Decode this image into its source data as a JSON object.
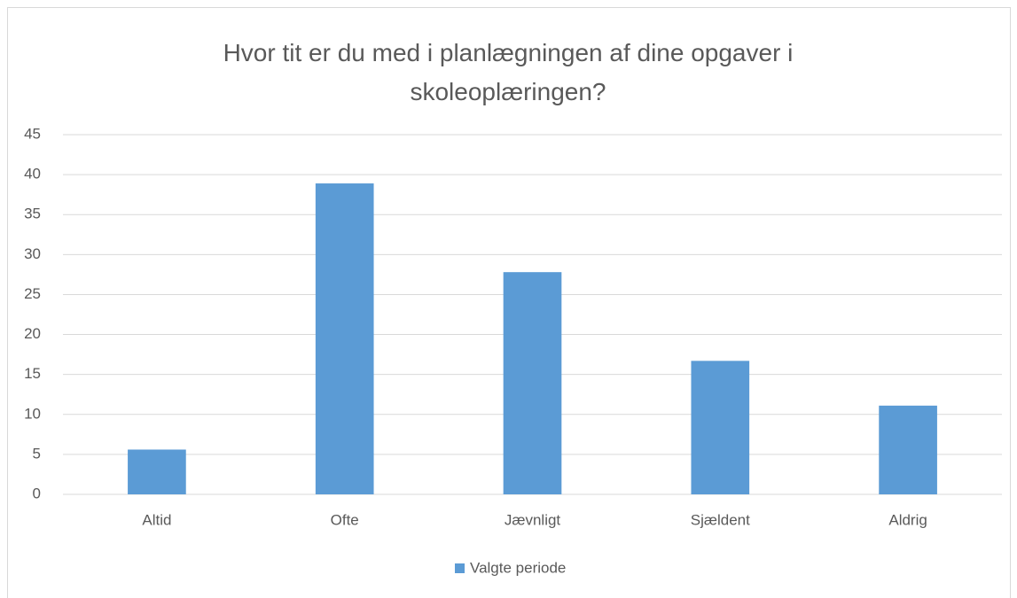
{
  "chart_data": {
    "type": "bar",
    "title": "Hvor tit er du med i planlægningen af dine opgaver i skoleoplæringen?",
    "categories": [
      "Altid",
      "Ofte",
      "Jævnligt",
      "Sjældent",
      "Aldrig"
    ],
    "series": [
      {
        "name": "Valgte periode",
        "color": "#5b9bd5",
        "values": [
          5.6,
          38.9,
          27.8,
          16.7,
          11.1
        ]
      }
    ],
    "ylim": [
      0,
      45
    ],
    "yticks": [
      0,
      5,
      10,
      15,
      20,
      25,
      30,
      35,
      40,
      45
    ],
    "grid": true,
    "legend": "bottom"
  }
}
